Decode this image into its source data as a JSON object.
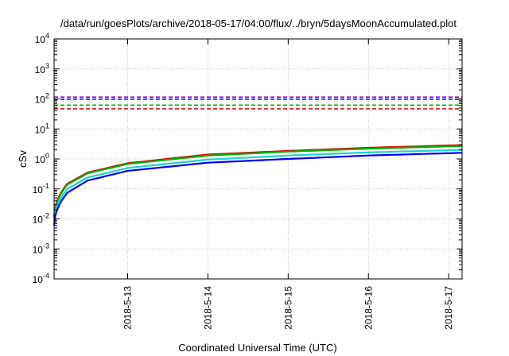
{
  "chart_data": {
    "type": "line",
    "title": "/data/run/goesPlots/archive/2018-05-17/04:00/flux/../bryn/5daysMoonAccumulated.plot",
    "xlabel": "Coordinated Universal Time (UTC)",
    "ylabel": "cSv",
    "x_scale": "date",
    "x_range": [
      "2018-05-12T02:00",
      "2018-05-17T04:00"
    ],
    "y_scale": "log",
    "ylim": [
      0.0001,
      10000
    ],
    "y_ticks": [
      {
        "mantissa": "10",
        "exp": "-4"
      },
      {
        "mantissa": "10",
        "exp": "-3"
      },
      {
        "mantissa": "10",
        "exp": "-2"
      },
      {
        "mantissa": "10",
        "exp": "-1"
      },
      {
        "mantissa": "10",
        "exp": "0"
      },
      {
        "mantissa": "10",
        "exp": "1"
      },
      {
        "mantissa": "10",
        "exp": "2"
      },
      {
        "mantissa": "10",
        "exp": "3"
      },
      {
        "mantissa": "10",
        "exp": "4"
      }
    ],
    "x_ticks": [
      "2018-5-13",
      "2018-5-14",
      "2018-5-15",
      "2018-5-16",
      "2018-5-17"
    ],
    "grid": true,
    "legend": "none",
    "thresholds": [
      {
        "color": "#9400d3",
        "value": 115
      },
      {
        "color": "#0000ff",
        "value": 98
      },
      {
        "color": "#00b000",
        "value": 62
      },
      {
        "color": "#e00000",
        "value": 47
      }
    ],
    "series": [
      {
        "color": "#e00000",
        "x": [
          "2018-05-12T02:00",
          "2018-05-12T06:00",
          "2018-05-12T12:00",
          "2018-05-13T00:00",
          "2018-05-14T00:00",
          "2018-05-15T00:00",
          "2018-05-16T00:00",
          "2018-05-17T04:00"
        ],
        "values": [
          0.012,
          0.15,
          0.35,
          0.72,
          1.4,
          1.85,
          2.35,
          2.9
        ]
      },
      {
        "color": "#00b000",
        "x": [
          "2018-05-12T02:00",
          "2018-05-12T06:00",
          "2018-05-12T12:00",
          "2018-05-13T00:00",
          "2018-05-14T00:00",
          "2018-05-15T00:00",
          "2018-05-16T00:00",
          "2018-05-17T04:00"
        ],
        "values": [
          0.011,
          0.14,
          0.33,
          0.68,
          1.3,
          1.75,
          2.2,
          2.7
        ]
      },
      {
        "color": "#20d0d0",
        "x": [
          "2018-05-12T02:00",
          "2018-05-12T06:00",
          "2018-05-12T12:00",
          "2018-05-13T00:00",
          "2018-05-14T00:00",
          "2018-05-15T00:00",
          "2018-05-16T00:00",
          "2018-05-17T04:00"
        ],
        "values": [
          0.008,
          0.1,
          0.24,
          0.5,
          0.95,
          1.3,
          1.65,
          2.0
        ]
      },
      {
        "color": "#0000ff",
        "x": [
          "2018-05-12T02:00",
          "2018-05-12T06:00",
          "2018-05-12T12:00",
          "2018-05-13T00:00",
          "2018-05-14T00:00",
          "2018-05-15T00:00",
          "2018-05-16T00:00",
          "2018-05-17T04:00"
        ],
        "values": [
          0.006,
          0.075,
          0.19,
          0.4,
          0.75,
          1.0,
          1.3,
          1.6
        ]
      }
    ]
  }
}
